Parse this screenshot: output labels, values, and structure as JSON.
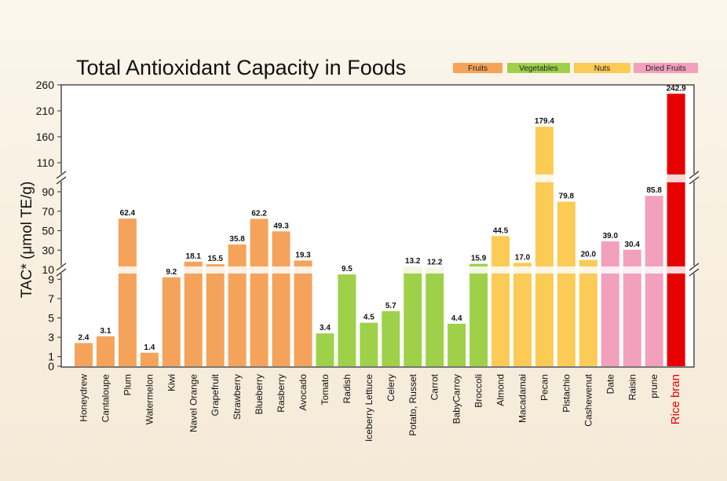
{
  "chart_data": {
    "type": "bar",
    "title": "Total Antioxidant Capacity in Foods",
    "ylabel": "TAC* (μmol TE/g)",
    "xlabel": "",
    "y_axis_breaks": [
      [
        10,
        11
      ],
      [
        90,
        110
      ]
    ],
    "yticks": [
      0,
      1,
      3,
      5,
      7,
      9,
      10,
      30,
      50,
      70,
      90,
      110,
      160,
      210,
      260
    ],
    "ylim": [
      0,
      260
    ],
    "grid": false,
    "legend": [
      {
        "label": "Fruits",
        "color": "#f5a35a"
      },
      {
        "label": "Vegetables",
        "color": "#9fd04a"
      },
      {
        "label": "Nuts",
        "color": "#fbcb55"
      },
      {
        "label": "Dried Fruits",
        "color": "#f3a0bd"
      }
    ],
    "legend_position": "top-right",
    "bars": [
      {
        "category": "Honeydrew",
        "value": 2.4,
        "label": "2.4",
        "group": "Fruits"
      },
      {
        "category": "Cantaloupe",
        "value": 3.1,
        "label": "3.1",
        "group": "Fruits"
      },
      {
        "category": "Plum",
        "value": 62.4,
        "label": "62.4",
        "group": "Fruits"
      },
      {
        "category": "Watermelon",
        "value": 1.4,
        "label": "1.4",
        "group": "Fruits"
      },
      {
        "category": "Kiwi",
        "value": 9.2,
        "label": "9.2",
        "group": "Fruits"
      },
      {
        "category": "Navel Orange",
        "value": 18.1,
        "label": "18.1",
        "group": "Fruits"
      },
      {
        "category": "Grapefruit",
        "value": 15.5,
        "label": "15.5",
        "group": "Fruits"
      },
      {
        "category": "Strawberry",
        "value": 35.8,
        "label": "35.8",
        "group": "Fruits"
      },
      {
        "category": "Blueberry",
        "value": 62.2,
        "label": "62.2",
        "group": "Fruits"
      },
      {
        "category": "Rasberry",
        "value": 49.3,
        "label": "49.3",
        "group": "Fruits"
      },
      {
        "category": "Avocado",
        "value": 19.3,
        "label": "19.3",
        "group": "Fruits"
      },
      {
        "category": "Tomato",
        "value": 3.4,
        "label": "3.4",
        "group": "Vegetables"
      },
      {
        "category": "Radish",
        "value": 9.5,
        "label": "9.5",
        "group": "Vegetables"
      },
      {
        "category": "Iceberry Lettuce",
        "value": 4.5,
        "label": "4.5",
        "group": "Vegetables"
      },
      {
        "category": "Celery",
        "value": 5.7,
        "label": "5.7",
        "group": "Vegetables"
      },
      {
        "category": "Potato, Russet",
        "value": 13.2,
        "label": "13.2",
        "group": "Vegetables"
      },
      {
        "category": "Carrot",
        "value": 12.2,
        "label": "12.2",
        "group": "Vegetables"
      },
      {
        "category": "BabyCarroy",
        "value": 4.4,
        "label": "4.4",
        "group": "Vegetables"
      },
      {
        "category": "Broccoli",
        "value": 15.9,
        "label": "15.9",
        "group": "Vegetables"
      },
      {
        "category": "Almond",
        "value": 44.5,
        "label": "44.5",
        "group": "Nuts"
      },
      {
        "category": "Macadamai",
        "value": 17.0,
        "label": "17.0",
        "group": "Nuts"
      },
      {
        "category": "Pecan",
        "value": 179.4,
        "label": "179.4",
        "group": "Nuts"
      },
      {
        "category": "Pistachio",
        "value": 79.8,
        "label": "79.8",
        "group": "Nuts"
      },
      {
        "category": "Cashewenut",
        "value": 20.0,
        "label": "20.0",
        "group": "Nuts"
      },
      {
        "category": "Date",
        "value": 39.0,
        "label": "39.0",
        "group": "Dried Fruits"
      },
      {
        "category": "Raisin",
        "value": 30.4,
        "label": "30.4",
        "group": "Dried Fruits"
      },
      {
        "category": "prune",
        "value": 85.8,
        "label": "85.8",
        "group": "Dried Fruits"
      },
      {
        "category": "Rice bran",
        "value": 242.9,
        "label": "242.9",
        "group": "Highlight",
        "color": "#e80000",
        "highlight": true
      }
    ]
  }
}
